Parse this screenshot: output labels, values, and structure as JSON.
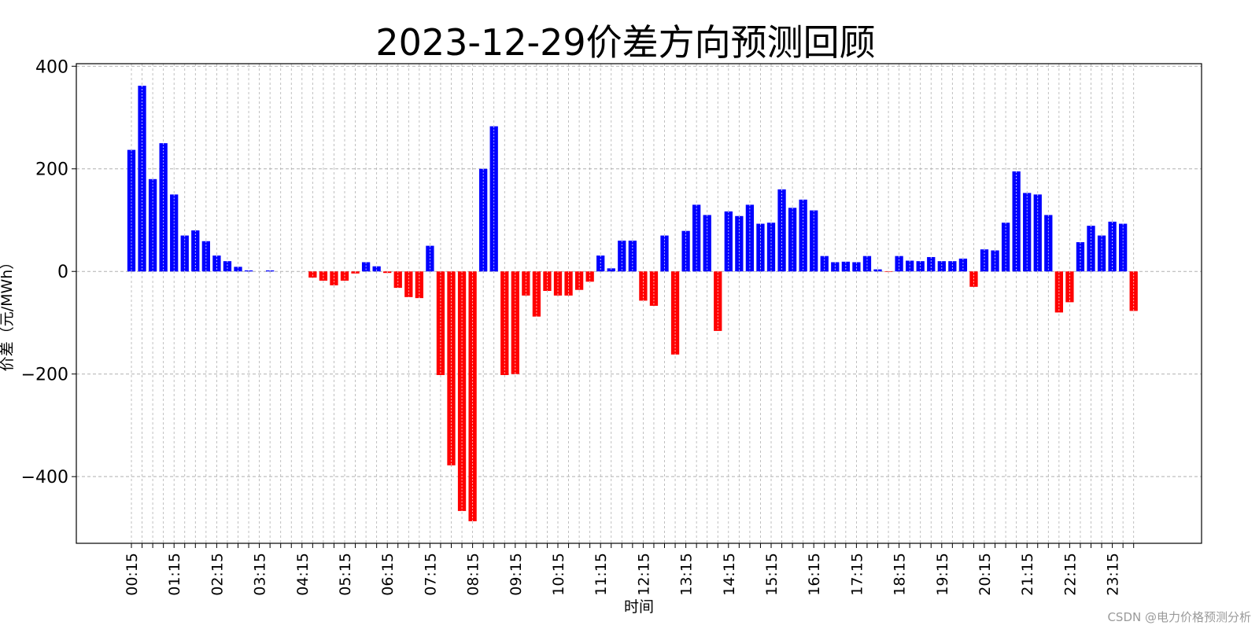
{
  "chart_data": {
    "type": "bar",
    "title": "2023-12-29价差方向预测回顾",
    "xlabel": "时间",
    "ylabel": "价差（元/MWh）",
    "ylim": [
      -530,
      405
    ],
    "yticks": [
      400,
      200,
      0,
      -200,
      -400
    ],
    "grid": true,
    "colors": {
      "positive": "#0000ff",
      "negative": "#ff0000"
    },
    "xtick_labels": [
      "00:15",
      "01:15",
      "02:15",
      "03:15",
      "04:15",
      "05:15",
      "06:15",
      "07:15",
      "08:15",
      "09:15",
      "10:15",
      "11:15",
      "12:15",
      "13:15",
      "14:15",
      "15:15",
      "16:15",
      "17:15",
      "18:15",
      "19:15",
      "20:15",
      "21:15",
      "22:15",
      "23:15"
    ],
    "values": [
      237,
      362,
      180,
      250,
      150,
      70,
      80,
      59,
      31,
      20,
      9,
      2,
      0,
      2,
      0,
      0,
      0,
      -12,
      -18,
      -27,
      -18,
      -4,
      18,
      10,
      -3,
      -32,
      -50,
      -52,
      50,
      -202,
      -378,
      -467,
      -487,
      200,
      283,
      -202,
      -200,
      -47,
      -88,
      -38,
      -47,
      -47,
      -36,
      -20,
      31,
      6,
      60,
      60,
      -57,
      -67,
      70,
      -162,
      79,
      130,
      110,
      -116,
      117,
      108,
      130,
      93,
      95,
      160,
      124,
      140,
      119,
      30,
      18,
      19,
      18,
      30,
      4,
      -1,
      30,
      21,
      20,
      28,
      20,
      20,
      25,
      -30,
      43,
      41,
      95,
      195,
      153,
      150,
      110,
      -80,
      -60,
      57,
      89,
      70,
      97,
      93,
      -77
    ]
  },
  "watermark": "CSDN @电力价格预测分析"
}
